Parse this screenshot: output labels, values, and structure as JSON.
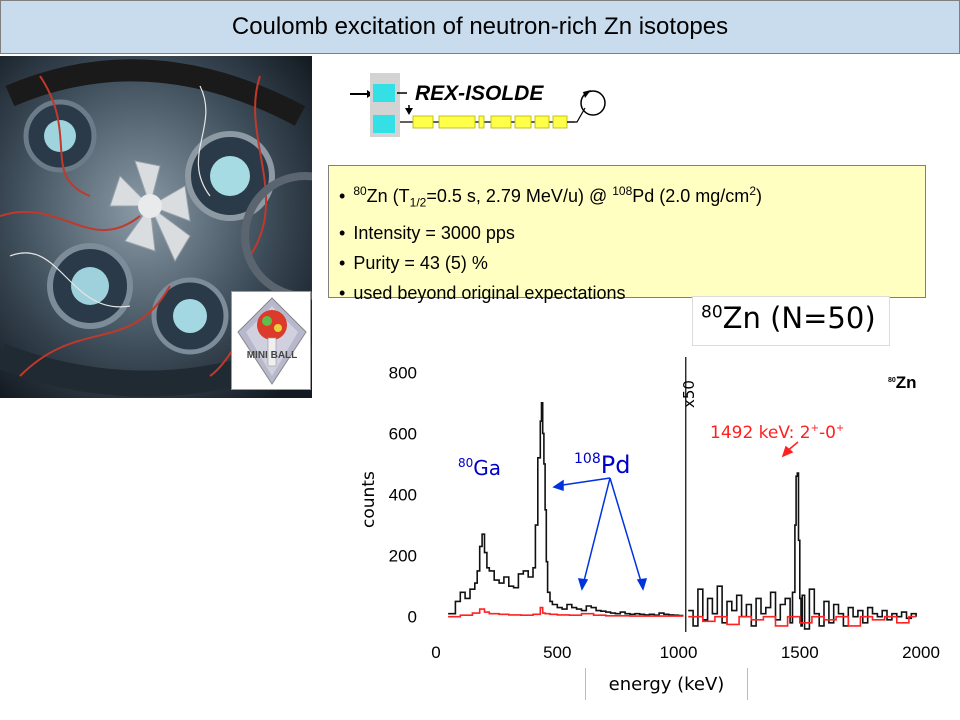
{
  "slide": {
    "title": "Coulomb excitation of neutron-rich Zn isotopes"
  },
  "facility": {
    "name": "REX-ISOLDE"
  },
  "info": {
    "line1": {
      "pre": "80",
      "a": "Zn (T",
      "sub": "1/2",
      "b": "=0.5 s, 2.79 MeV/u) @ ",
      "sup2": "108",
      "c": "Pd (2.0 mg/cm",
      "sup3": "2",
      "d": ")"
    },
    "line2": "Intensity = 3000 pps",
    "line3": "Purity = 43 (5) %",
    "line4": "used beyond original expectations"
  },
  "nuclide_title": {
    "mass": "80",
    "text": "Zn (N=50)"
  },
  "logo": {
    "text": "MINI BALL"
  },
  "chart_data": {
    "type": "line",
    "xlabel": "energy (keV)",
    "ylabel": "counts",
    "xlim": [
      0,
      2000
    ],
    "ylim": [
      -50,
      850
    ],
    "x_ticks": [
      "0",
      "500",
      "1000",
      "1500",
      "2000"
    ],
    "y_ticks": [
      "0",
      "200",
      "400",
      "600",
      "800"
    ],
    "scale_note": "x50",
    "scale_break_at": 1030,
    "corner_label": {
      "mass": "80",
      "symbol": "Zn"
    },
    "annotations": {
      "ga_mass": "80",
      "ga_symbol": "Ga",
      "pd_mass": "108",
      "pd_symbol": "Pd",
      "peak": "1492 keV: 2",
      "peak_sup1": "+",
      "peak_mid": "-0",
      "peak_sup2": "+"
    },
    "series": [
      {
        "color": "#111111",
        "x": [
          50,
          80,
          100,
          120,
          140,
          160,
          170,
          180,
          190,
          200,
          210,
          220,
          240,
          260,
          280,
          300,
          320,
          340,
          360,
          380,
          400,
          410,
          420,
          430,
          435,
          440,
          445,
          450,
          455,
          460,
          470,
          480,
          500,
          520,
          540,
          560,
          580,
          600,
          620,
          640,
          660,
          680,
          700,
          720,
          740,
          760,
          780,
          800,
          820,
          840,
          860,
          880,
          900,
          920,
          940,
          960,
          980,
          1000,
          1020
        ],
        "values": [
          10,
          50,
          80,
          60,
          90,
          110,
          150,
          230,
          270,
          210,
          160,
          150,
          120,
          110,
          130,
          100,
          95,
          140,
          150,
          130,
          160,
          300,
          520,
          640,
          700,
          600,
          500,
          350,
          180,
          80,
          50,
          40,
          30,
          25,
          40,
          30,
          25,
          20,
          35,
          30,
          20,
          18,
          15,
          12,
          10,
          15,
          10,
          8,
          10,
          8,
          6,
          8,
          5,
          12,
          8,
          6,
          5,
          4,
          4
        ]
      },
      {
        "color": "#ff2222",
        "x": [
          50,
          100,
          150,
          180,
          200,
          220,
          260,
          300,
          350,
          400,
          430,
          440,
          450,
          470,
          500,
          550,
          600,
          650,
          700,
          800,
          900,
          1000,
          1020
        ],
        "values": [
          0,
          5,
          12,
          25,
          15,
          10,
          8,
          6,
          5,
          8,
          30,
          12,
          10,
          8,
          6,
          5,
          10,
          5,
          3,
          2,
          2,
          2,
          2
        ]
      },
      {
        "color": "#111111",
        "x": [
          1040,
          1060,
          1080,
          1100,
          1120,
          1140,
          1160,
          1180,
          1200,
          1220,
          1240,
          1260,
          1280,
          1300,
          1320,
          1340,
          1360,
          1380,
          1400,
          1420,
          1440,
          1460,
          1470,
          1480,
          1485,
          1490,
          1495,
          1500,
          1505,
          1510,
          1520,
          1540,
          1560,
          1580,
          1600,
          1620,
          1640,
          1660,
          1680,
          1700,
          1720,
          1740,
          1760,
          1780,
          1800,
          1820,
          1840,
          1860,
          1880,
          1900,
          1920,
          1940,
          1960,
          1980
        ],
        "values": [
          20,
          -30,
          90,
          -10,
          60,
          10,
          100,
          -20,
          50,
          20,
          70,
          0,
          40,
          -30,
          60,
          10,
          30,
          80,
          -10,
          40,
          60,
          -20,
          80,
          300,
          460,
          470,
          250,
          60,
          -30,
          70,
          -40,
          90,
          10,
          -30,
          50,
          -20,
          40,
          10,
          -30,
          30,
          0,
          20,
          -20,
          30,
          10,
          0,
          20,
          -10,
          10,
          0,
          15,
          -5,
          10,
          0
        ]
      },
      {
        "color": "#ff2222",
        "x": [
          1040,
          1100,
          1150,
          1200,
          1250,
          1300,
          1350,
          1400,
          1450,
          1500,
          1550,
          1600,
          1650,
          1700,
          1750,
          1800,
          1850,
          1900,
          1950,
          1980
        ],
        "values": [
          0,
          -15,
          0,
          -25,
          0,
          -10,
          0,
          -30,
          0,
          -20,
          0,
          -10,
          0,
          -30,
          0,
          -10,
          0,
          -20,
          0,
          0
        ]
      }
    ]
  }
}
